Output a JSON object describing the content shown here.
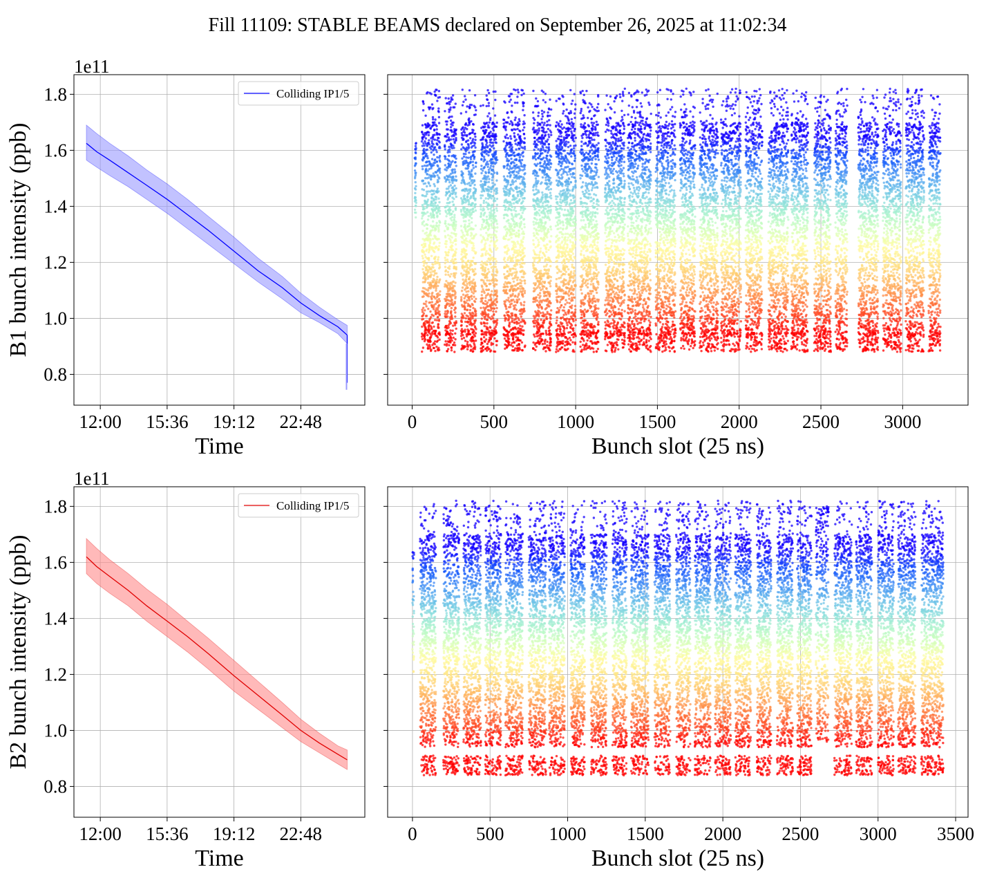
{
  "title": "Fill 11109: STABLE BEAMS declared on September 26, 2025 at 11:02:34",
  "chart_data": [
    {
      "id": "b1-time",
      "type": "line",
      "xlabel": "Time",
      "ylabel": "B1 bunch intensity (ppb)",
      "yscale_label": "1e11",
      "x_ticks": [
        "12:00",
        "15:36",
        "19:12",
        "22:48"
      ],
      "x_tick_values": [
        12.0,
        15.6,
        19.2,
        22.8
      ],
      "xlim": [
        10.58,
        26.25
      ],
      "ylim": [
        0.69,
        1.87
      ],
      "y_ticks": [
        "0.8",
        "1.0",
        "1.2",
        "1.4",
        "1.6",
        "1.8"
      ],
      "y_tick_values": [
        0.8,
        1.0,
        1.2,
        1.4,
        1.6,
        1.8
      ],
      "legend": "Colliding IP1/5",
      "legend_position": "top-right",
      "grid": true,
      "color": "#0000ff",
      "band_color": "#9a9aff",
      "series": {
        "name": "Colliding IP1/5",
        "x": [
          11.25,
          11.8,
          12.5,
          13.5,
          14.5,
          15.6,
          16.7,
          17.8,
          19.2,
          20.5,
          21.8,
          22.8,
          23.8,
          24.8,
          25.3
        ],
        "mean": [
          1.625,
          1.595,
          1.565,
          1.52,
          1.475,
          1.425,
          1.37,
          1.315,
          1.24,
          1.17,
          1.11,
          1.055,
          1.01,
          0.97,
          0.94
        ],
        "upper": [
          1.69,
          1.66,
          1.625,
          1.58,
          1.53,
          1.48,
          1.425,
          1.365,
          1.29,
          1.215,
          1.15,
          1.09,
          1.04,
          0.995,
          0.975
        ],
        "lower": [
          1.565,
          1.54,
          1.51,
          1.47,
          1.425,
          1.375,
          1.32,
          1.265,
          1.195,
          1.13,
          1.07,
          1.02,
          0.985,
          0.945,
          0.91
        ],
        "end_drop": [
          0.77,
          0.745
        ]
      }
    },
    {
      "id": "b1-bunch",
      "type": "scatter",
      "xlabel": "Bunch slot (25 ns)",
      "ylabel": "",
      "x_ticks": [
        "0",
        "500",
        "1000",
        "1500",
        "2000",
        "2500",
        "3000"
      ],
      "x_tick_values": [
        0,
        500,
        1000,
        1500,
        2000,
        2500,
        3000
      ],
      "xlim": [
        -150,
        3400
      ],
      "ylim": [
        0.69,
        1.87
      ],
      "y_tick_values": [
        0.8,
        1.0,
        1.2,
        1.4,
        1.6,
        1.8
      ],
      "grid": true,
      "colormap": "rainbow",
      "color_low_value": 0.95,
      "color_high_value": 1.65,
      "pilot_slot": 20,
      "pilot_range": [
        1.36,
        1.63
      ],
      "trains": [
        [
          60,
          170
        ],
        [
          200,
          270
        ],
        [
          300,
          390
        ],
        [
          420,
          520
        ],
        [
          560,
          690
        ],
        [
          740,
          850
        ],
        [
          880,
          1000
        ],
        [
          1030,
          1140
        ],
        [
          1180,
          1300
        ],
        [
          1320,
          1460
        ],
        [
          1490,
          1610
        ],
        [
          1640,
          1730
        ],
        [
          1760,
          1870
        ],
        [
          1890,
          2010
        ],
        [
          2040,
          2140
        ],
        [
          2180,
          2300
        ],
        [
          2320,
          2420
        ],
        [
          2460,
          2560
        ],
        [
          2590,
          2660
        ],
        [
          2730,
          2850
        ],
        [
          2880,
          2990
        ],
        [
          3020,
          3130
        ],
        [
          3160,
          3230
        ]
      ],
      "band_min": 0.88,
      "band_max": 1.82
    },
    {
      "id": "b2-time",
      "type": "line",
      "xlabel": "Time",
      "ylabel": "B2 bunch intensity (ppb)",
      "yscale_label": "1e11",
      "x_ticks": [
        "12:00",
        "15:36",
        "19:12",
        "22:48"
      ],
      "x_tick_values": [
        12.0,
        15.6,
        19.2,
        22.8
      ],
      "xlim": [
        10.58,
        26.25
      ],
      "ylim": [
        0.69,
        1.87
      ],
      "y_ticks": [
        "0.8",
        "1.0",
        "1.2",
        "1.4",
        "1.6",
        "1.8"
      ],
      "y_tick_values": [
        0.8,
        1.0,
        1.2,
        1.4,
        1.6,
        1.8
      ],
      "legend": "Colliding IP1/5",
      "legend_position": "top-right",
      "grid": true,
      "color": "#e00000",
      "band_color": "#ff8a8a",
      "series": {
        "name": "Colliding IP1/5",
        "x": [
          11.25,
          11.8,
          12.5,
          13.5,
          14.5,
          15.6,
          16.7,
          17.8,
          19.2,
          20.5,
          21.8,
          22.8,
          23.8,
          24.8,
          25.3
        ],
        "mean": [
          1.62,
          1.585,
          1.55,
          1.5,
          1.445,
          1.39,
          1.335,
          1.275,
          1.195,
          1.125,
          1.055,
          1.0,
          0.955,
          0.915,
          0.895
        ],
        "upper": [
          1.685,
          1.65,
          1.61,
          1.56,
          1.505,
          1.45,
          1.39,
          1.33,
          1.25,
          1.175,
          1.1,
          1.04,
          0.99,
          0.945,
          0.93
        ],
        "lower": [
          1.56,
          1.525,
          1.49,
          1.445,
          1.39,
          1.335,
          1.28,
          1.22,
          1.14,
          1.075,
          1.01,
          0.96,
          0.92,
          0.88,
          0.86
        ]
      }
    },
    {
      "id": "b2-bunch",
      "type": "scatter",
      "xlabel": "Bunch slot (25 ns)",
      "ylabel": "",
      "x_ticks": [
        "0",
        "500",
        "1000",
        "1500",
        "2000",
        "2500",
        "3000",
        "3500"
      ],
      "x_tick_values": [
        0,
        500,
        1000,
        1500,
        2000,
        2500,
        3000,
        3500
      ],
      "xlim": [
        -160,
        3580
      ],
      "ylim": [
        0.69,
        1.87
      ],
      "y_tick_values": [
        0.8,
        1.0,
        1.2,
        1.4,
        1.6,
        1.8
      ],
      "grid": true,
      "colormap": "rainbow",
      "color_low_value": 0.95,
      "color_high_value": 1.65,
      "pilot_slot": 5,
      "pilot_range": [
        1.2,
        1.64
      ],
      "trains": [
        [
          50,
          150
        ],
        [
          200,
          300
        ],
        [
          330,
          440
        ],
        [
          470,
          570
        ],
        [
          600,
          710
        ],
        [
          750,
          860
        ],
        [
          880,
          980
        ],
        [
          1020,
          1110
        ],
        [
          1150,
          1250
        ],
        [
          1290,
          1380
        ],
        [
          1410,
          1520
        ],
        [
          1560,
          1660
        ],
        [
          1700,
          1790
        ],
        [
          1820,
          1920
        ],
        [
          1950,
          2050
        ],
        [
          2080,
          2180
        ],
        [
          2220,
          2310
        ],
        [
          2350,
          2450
        ],
        [
          2480,
          2570
        ],
        [
          2600,
          2680
        ],
        [
          2720,
          2830
        ],
        [
          2860,
          2960
        ],
        [
          3000,
          3100
        ],
        [
          3130,
          3240
        ],
        [
          3280,
          3420
        ]
      ],
      "special_train": [
        2600,
        2680
      ],
      "special_range": [
        0.96,
        1.8
      ],
      "band_min": 0.84,
      "band_max": 1.82
    }
  ]
}
